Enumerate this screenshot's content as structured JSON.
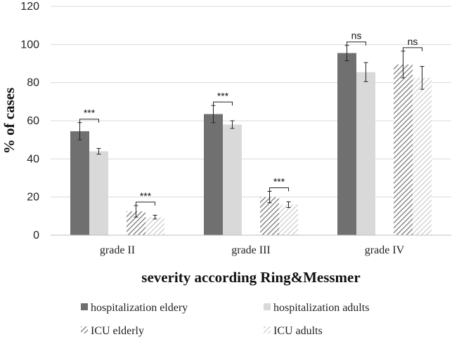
{
  "chart_data": {
    "type": "bar",
    "title": "",
    "xlabel": "severity according Ring&Messmer",
    "ylabel": "% of cases",
    "ylim": [
      0,
      120
    ],
    "yticks": [
      0,
      20,
      40,
      60,
      80,
      100,
      120
    ],
    "grid": true,
    "legend_position": "bottom",
    "categories": [
      "grade II",
      "grade III",
      "grade IV"
    ],
    "series": [
      {
        "name": "hospitalization eldery",
        "values": [
          54.5,
          63.5,
          95.5
        ],
        "errors": [
          4.5,
          4.5,
          4.0
        ],
        "color": "#707070",
        "pattern": "solid"
      },
      {
        "name": "hospitalization adults",
        "values": [
          44.0,
          58.0,
          85.5
        ],
        "errors": [
          1.5,
          2.0,
          5.0
        ],
        "color": "#d9d9d9",
        "pattern": "solid"
      },
      {
        "name": "ICU elderly",
        "values": [
          12.5,
          20.0,
          89.5
        ],
        "errors": [
          3.0,
          3.0,
          7.0
        ],
        "color": "#808080",
        "pattern": "dense-diagonal"
      },
      {
        "name": "ICU adults",
        "values": [
          9.5,
          16.0,
          82.5
        ],
        "errors": [
          1.0,
          1.5,
          6.0
        ],
        "color": "#c8c8c8",
        "pattern": "light-diagonal"
      }
    ],
    "annotations": [
      {
        "label": "***",
        "category": 0,
        "pair": [
          0,
          1
        ]
      },
      {
        "label": "***",
        "category": 0,
        "pair": [
          2,
          3
        ]
      },
      {
        "label": "***",
        "category": 1,
        "pair": [
          0,
          1
        ]
      },
      {
        "label": "***",
        "category": 1,
        "pair": [
          2,
          3
        ]
      },
      {
        "label": "ns",
        "category": 2,
        "pair": [
          0,
          1
        ]
      },
      {
        "label": "ns",
        "category": 2,
        "pair": [
          2,
          3
        ]
      }
    ]
  }
}
